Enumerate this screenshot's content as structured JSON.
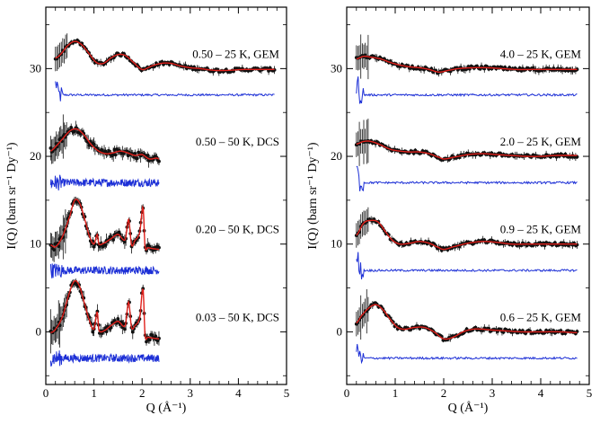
{
  "figure": {
    "ylabel": "I(Q) (barn sr⁻¹ Dy⁻¹)",
    "xlabel": "Q (Å⁻¹)"
  },
  "colors": {
    "data": "#111111",
    "fit": "#e0201b",
    "residual": "#1c2fd6",
    "axis": "#000000"
  },
  "chart_data": [
    {
      "type": "line",
      "panel": "left",
      "xlim": [
        0,
        5
      ],
      "ylim": [
        -6,
        37
      ],
      "xticks": [
        0,
        1,
        2,
        3,
        4,
        5
      ],
      "yticks": [
        0,
        10,
        20,
        30
      ],
      "xlabel": "Q (Å⁻¹)",
      "ylabel": "I(Q) (barn sr⁻¹ Dy⁻¹)",
      "grid": false,
      "series": [
        {
          "name": "0.50 – 25 K, GEM",
          "offset": 30,
          "residual_offset": 27,
          "q_max": 4.75,
          "x": [
            0.2,
            0.3,
            0.45,
            0.6,
            0.75,
            0.9,
            1.05,
            1.2,
            1.35,
            1.5,
            1.65,
            1.8,
            2.0,
            2.2,
            2.4,
            2.6,
            2.8,
            3.0,
            3.2,
            3.5,
            3.8,
            4.1,
            4.4,
            4.75
          ],
          "y": [
            31.2,
            31.6,
            32.6,
            33.1,
            32.7,
            31.7,
            30.7,
            30.6,
            31.2,
            31.6,
            31.5,
            30.8,
            29.9,
            30.3,
            30.6,
            30.6,
            30.3,
            30.1,
            30.0,
            29.8,
            29.8,
            29.9,
            29.9,
            29.9
          ]
        },
        {
          "name": "0.50 – 50 K, DCS",
          "offset": 20,
          "residual_offset": 17,
          "q_max": 2.35,
          "x": [
            0.1,
            0.2,
            0.35,
            0.5,
            0.65,
            0.8,
            0.95,
            1.1,
            1.25,
            1.4,
            1.55,
            1.7,
            1.85,
            2.0,
            2.15,
            2.3,
            2.35
          ],
          "y": [
            20.6,
            21.1,
            22.0,
            22.9,
            23.1,
            22.4,
            21.3,
            20.6,
            20.3,
            20.4,
            20.6,
            20.4,
            20.1,
            20.2,
            19.7,
            19.8,
            19.7
          ]
        },
        {
          "name": "0.20 – 50 K, DCS",
          "offset": 10,
          "residual_offset": 7,
          "q_max": 2.35,
          "x": [
            0.1,
            0.2,
            0.35,
            0.5,
            0.6,
            0.7,
            0.8,
            0.9,
            1.0,
            1.07,
            1.1,
            1.2,
            1.35,
            1.5,
            1.65,
            1.72,
            1.78,
            1.85,
            1.95,
            2.02,
            2.06,
            2.12,
            2.2,
            2.35
          ],
          "y": [
            9.9,
            9.7,
            10.9,
            13.2,
            15.0,
            14.7,
            13.0,
            11.0,
            10.0,
            11.1,
            10.0,
            10.1,
            10.6,
            11.1,
            10.5,
            12.8,
            9.9,
            10.4,
            11.3,
            14.2,
            9.7,
            9.6,
            9.5,
            9.4
          ]
        },
        {
          "name": "0.03 – 50 K, DCS",
          "offset": 0,
          "residual_offset": -3,
          "q_max": 2.35,
          "x": [
            0.1,
            0.2,
            0.35,
            0.5,
            0.6,
            0.7,
            0.8,
            0.9,
            1.0,
            1.07,
            1.1,
            1.2,
            1.35,
            1.5,
            1.65,
            1.72,
            1.78,
            1.85,
            1.95,
            2.02,
            2.06,
            2.12,
            2.2,
            2.35
          ],
          "y": [
            -0.1,
            0.3,
            1.8,
            4.6,
            5.8,
            5.2,
            3.3,
            1.4,
            0.3,
            2.3,
            0.2,
            0.1,
            0.7,
            1.2,
            0.7,
            3.4,
            0.5,
            0.7,
            1.6,
            4.9,
            -0.4,
            -0.6,
            -0.7,
            -0.8
          ]
        }
      ]
    },
    {
      "type": "line",
      "panel": "right",
      "xlim": [
        0,
        5
      ],
      "ylim": [
        -6,
        37
      ],
      "xticks": [
        0,
        1,
        2,
        3,
        4,
        5
      ],
      "yticks": [
        0,
        10,
        20,
        30
      ],
      "xlabel": "Q (Å⁻¹)",
      "ylabel": "I(Q) (barn sr⁻¹ Dy⁻¹)",
      "grid": false,
      "series": [
        {
          "name": "4.0 – 25 K, GEM",
          "offset": 30,
          "residual_offset": 27,
          "q_max": 4.75,
          "x": [
            0.2,
            0.35,
            0.5,
            0.7,
            0.9,
            1.1,
            1.3,
            1.5,
            1.7,
            1.9,
            2.1,
            2.3,
            2.6,
            2.9,
            3.2,
            3.5,
            3.8,
            4.1,
            4.4,
            4.75
          ],
          "y": [
            31.1,
            31.4,
            31.3,
            31.1,
            30.7,
            30.4,
            30.2,
            30.1,
            29.9,
            29.6,
            29.8,
            30.0,
            30.1,
            30.1,
            30.0,
            29.9,
            29.9,
            29.9,
            29.9,
            29.9
          ]
        },
        {
          "name": "2.0 – 25 K, GEM",
          "offset": 20,
          "residual_offset": 17,
          "q_max": 4.75,
          "x": [
            0.2,
            0.35,
            0.5,
            0.7,
            0.9,
            1.1,
            1.3,
            1.5,
            1.7,
            1.9,
            2.0,
            2.2,
            2.5,
            2.8,
            3.1,
            3.4,
            3.7,
            4.0,
            4.3,
            4.75
          ],
          "y": [
            21.4,
            21.7,
            21.7,
            21.3,
            20.8,
            20.6,
            20.5,
            20.5,
            20.3,
            19.9,
            19.7,
            19.9,
            20.2,
            20.3,
            20.2,
            20.1,
            20.0,
            20.0,
            20.1,
            20.1
          ]
        },
        {
          "name": "0.9 – 25 K, GEM",
          "offset": 10,
          "residual_offset": 7,
          "q_max": 4.75,
          "x": [
            0.2,
            0.35,
            0.5,
            0.65,
            0.8,
            0.95,
            1.1,
            1.3,
            1.5,
            1.7,
            1.9,
            2.0,
            2.2,
            2.5,
            2.8,
            3.1,
            3.4,
            3.7,
            4.0,
            4.4,
            4.75
          ],
          "y": [
            11.0,
            12.4,
            12.7,
            12.5,
            11.4,
            10.4,
            10.0,
            10.1,
            10.3,
            10.1,
            9.6,
            9.4,
            9.7,
            10.1,
            10.3,
            10.2,
            10.0,
            10.0,
            10.0,
            10.0,
            10.0
          ]
        },
        {
          "name": "0.6 – 25 K, GEM",
          "offset": 0,
          "residual_offset": -3,
          "q_max": 4.75,
          "x": [
            0.2,
            0.3,
            0.45,
            0.6,
            0.75,
            0.9,
            1.05,
            1.2,
            1.4,
            1.6,
            1.8,
            2.0,
            2.2,
            2.4,
            2.6,
            2.8,
            3.0,
            3.3,
            3.6,
            4.0,
            4.4,
            4.75
          ],
          "y": [
            1.0,
            1.8,
            2.7,
            3.1,
            2.5,
            1.4,
            0.5,
            0.3,
            0.5,
            0.5,
            0.0,
            -0.8,
            -0.6,
            0.0,
            0.3,
            0.3,
            0.2,
            0.1,
            0.0,
            0.0,
            0.0,
            -0.1
          ]
        }
      ]
    }
  ]
}
